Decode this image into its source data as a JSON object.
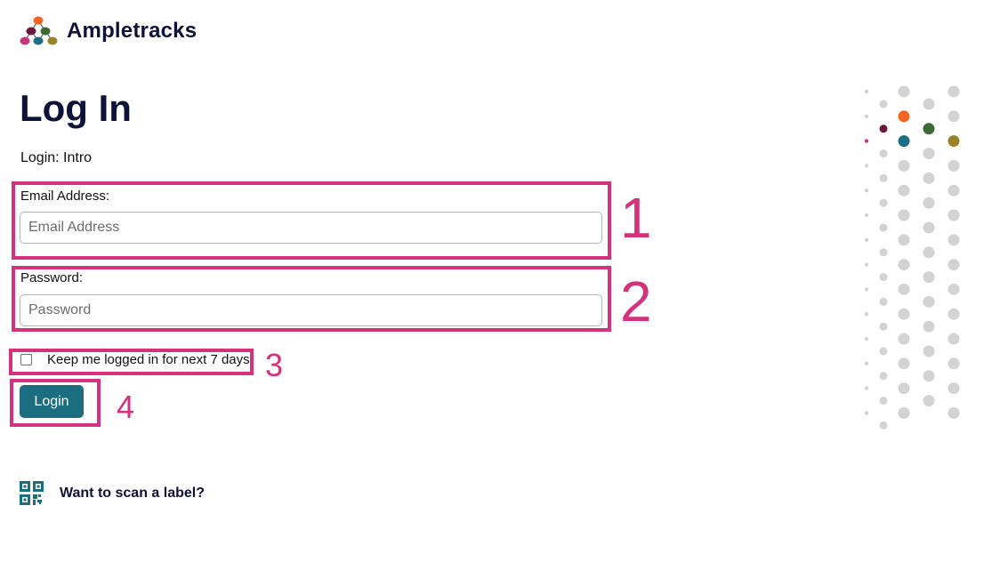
{
  "brand": {
    "name": "Ampletracks"
  },
  "page": {
    "title": "Log In",
    "subtitle": "Login: Intro"
  },
  "form": {
    "email": {
      "label": "Email Address:",
      "placeholder": "Email Address",
      "value": ""
    },
    "password": {
      "label": "Password:",
      "placeholder": "Password",
      "value": ""
    },
    "remember": {
      "label": "Keep me logged in for next 7 days",
      "checked": false
    },
    "submit_label": "Login"
  },
  "scan": {
    "label": "Want to scan a label?",
    "icon": "qr-code-icon"
  },
  "annotations": [
    "1",
    "2",
    "3",
    "4"
  ],
  "colors": {
    "annotation": "#d6317d",
    "button": "#1b6e80",
    "dot_orange": "#f26522",
    "dot_green": "#3d6b35",
    "dot_teal": "#1b7088",
    "dot_olive": "#9a8428",
    "dot_plum": "#6b1744",
    "dot_magenta": "#c3357d",
    "dot_grey": "#d3d3d3"
  }
}
